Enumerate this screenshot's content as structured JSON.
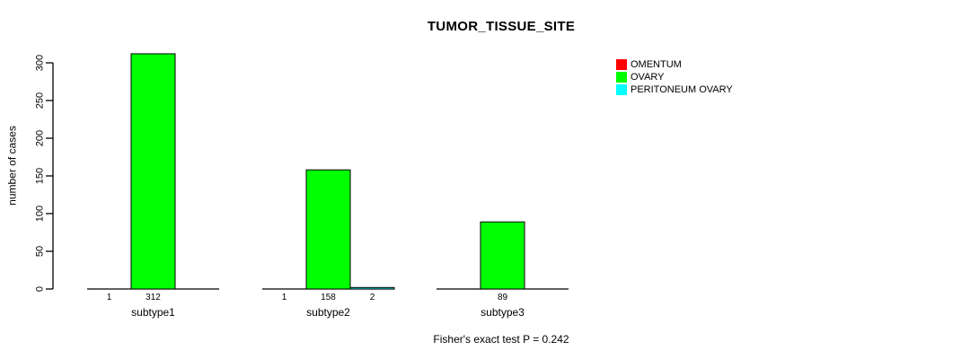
{
  "chart_data": {
    "type": "bar",
    "title": "TUMOR_TISSUE_SITE",
    "ylabel": "number of cases",
    "xlabel": "",
    "categories": [
      "subtype1",
      "subtype2",
      "subtype3"
    ],
    "series": [
      {
        "name": "OMENTUM",
        "color": "#ff0000",
        "values": [
          1,
          1,
          0
        ],
        "value_labels": [
          "1",
          "1",
          ""
        ]
      },
      {
        "name": "OVARY",
        "color": "#00ff00",
        "values": [
          312,
          158,
          89
        ],
        "value_labels": [
          "312",
          "158",
          "89"
        ]
      },
      {
        "name": "PERITONEUM OVARY",
        "color": "#00ffff",
        "values": [
          0,
          2,
          0
        ],
        "value_labels": [
          "",
          "2",
          ""
        ]
      }
    ],
    "ylim": [
      0,
      300
    ],
    "yticks": [
      0,
      50,
      100,
      150,
      200,
      250,
      300
    ],
    "grid": false,
    "legend_position": "right",
    "annotation": "Fisher's exact test P = 0.242"
  }
}
